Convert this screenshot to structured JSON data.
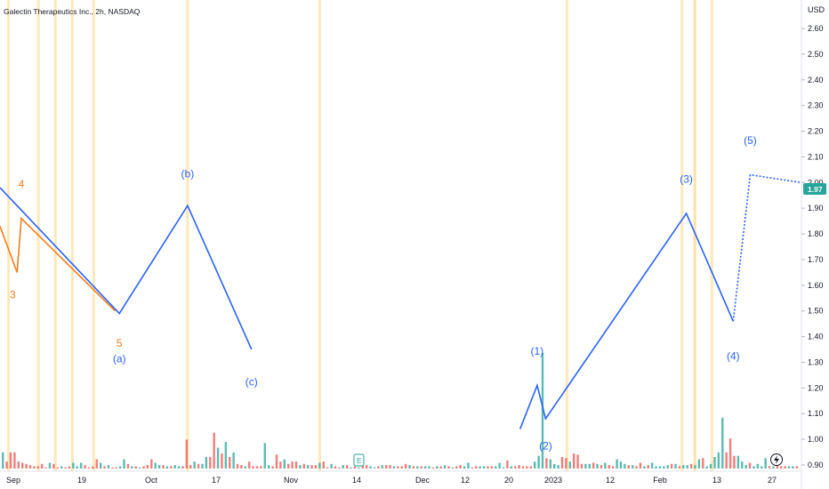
{
  "header": {
    "title": "Galectin Therapeutics Inc., 2h, NASDAQ",
    "currency": "USD"
  },
  "price_badge": {
    "value": "1.97",
    "color": "#26a69a"
  },
  "event_markers": {
    "earnings": "E",
    "flash_icon": "lightning-icon"
  },
  "colors": {
    "blue_wave": "#2962ff",
    "orange_wave": "#f57c1f",
    "volume_up": "#26a69a",
    "volume_down": "#ef5350",
    "session_band": "#ffe0a3"
  },
  "chart_data": {
    "type": "line",
    "title": "Galectin Therapeutics Inc., 2h, NASDAQ",
    "y_axis": {
      "label": "USD",
      "ticks": [
        "2.60",
        "2.50",
        "2.40",
        "2.30",
        "2.20",
        "2.10",
        "2.00",
        "1.90",
        "1.80",
        "1.70",
        "1.60",
        "1.50",
        "1.40",
        "1.30",
        "1.20",
        "1.10",
        "1.00",
        "0.90"
      ],
      "range": [
        0.87,
        2.68
      ]
    },
    "x_axis": {
      "ticks": [
        "Sep",
        "19",
        "Oct",
        "17",
        "Nov",
        "14",
        "Dec",
        "12",
        "20",
        "2023",
        "12",
        "Feb",
        "13",
        "27"
      ],
      "range": [
        "2022-08-29",
        "2023-03-05"
      ]
    },
    "series": [
      {
        "points": [
          {
            "x": "2022-08-29",
            "y": 1.98
          },
          {
            "x": "2022-09-26",
            "y": 1.49
          },
          {
            "x": "2022-10-12",
            "y": 1.91
          },
          {
            "x": "2022-10-27",
            "y": 1.35
          }
        ],
        "labels": [
          {
            "text": "(a)",
            "x": "2022-09-26",
            "y": 1.3
          },
          {
            "text": "(b)",
            "x": "2022-10-12",
            "y": 2.02
          },
          {
            "text": "(c)",
            "x": "2022-10-27",
            "y": 1.21
          }
        ]
      },
      {
        "points": [
          {
            "x": "2022-08-29",
            "y": 1.83
          },
          {
            "x": "2022-09-02",
            "y": 1.65
          },
          {
            "x": "2022-09-03",
            "y": 1.86
          },
          {
            "x": "2022-09-25",
            "y": 1.5
          }
        ],
        "labels": [
          {
            "text": "3",
            "x": "2022-09-01",
            "y": 1.55
          },
          {
            "text": "4",
            "x": "2022-09-03",
            "y": 1.98
          },
          {
            "text": "5",
            "x": "2022-09-26",
            "y": 1.36
          }
        ]
      },
      {
        "points": [
          {
            "x": "2022-12-29",
            "y": 1.04
          },
          {
            "x": "2023-01-02",
            "y": 1.21
          },
          {
            "x": "2023-01-04",
            "y": 1.08
          },
          {
            "x": "2023-02-06",
            "y": 1.88
          },
          {
            "x": "2023-02-17",
            "y": 1.46
          }
        ],
        "projected": [
          {
            "x": "2023-02-17",
            "y": 1.46
          },
          {
            "x": "2023-02-21",
            "y": 2.03
          },
          {
            "x": "2023-03-05",
            "y": 2.0
          }
        ],
        "labels": [
          {
            "text": "(1)",
            "x": "2023-01-02",
            "y": 1.33
          },
          {
            "text": "(2)",
            "x": "2023-01-04",
            "y": 0.96
          },
          {
            "text": "(3)",
            "x": "2023-02-06",
            "y": 2.0
          },
          {
            "text": "(4)",
            "x": "2023-02-17",
            "y": 1.31
          },
          {
            "text": "(5)",
            "x": "2023-02-21",
            "y": 2.15
          }
        ]
      }
    ],
    "last_price": 1.97,
    "grid": false,
    "volume": {
      "max": 100,
      "values": [
        14,
        6,
        14,
        14,
        6,
        5,
        4,
        3,
        2,
        2,
        4,
        1,
        5,
        4,
        1,
        2,
        1,
        2,
        5,
        2,
        5,
        3,
        1,
        2,
        8,
        5,
        2,
        3,
        1,
        1,
        2,
        8,
        4,
        2,
        2,
        1,
        2,
        3,
        8,
        5,
        3,
        3,
        2,
        2,
        3,
        2,
        2,
        25,
        3,
        6,
        4,
        4,
        10,
        10,
        31,
        18,
        13,
        23,
        10,
        14,
        4,
        3,
        2,
        6,
        2,
        2,
        2,
        22,
        3,
        2,
        12,
        6,
        8,
        4,
        6,
        6,
        3,
        4,
        3,
        3,
        3,
        5,
        6,
        1,
        4,
        2,
        1,
        3,
        3,
        1,
        2,
        1,
        3,
        3,
        2,
        1,
        2,
        3,
        3,
        3,
        2,
        2,
        2,
        4,
        3,
        2,
        2,
        2,
        2,
        2,
        1,
        2,
        2,
        3,
        2,
        1,
        2,
        3,
        2,
        5,
        1,
        2,
        2,
        2,
        2,
        2,
        2,
        5,
        1,
        7,
        2,
        2,
        3,
        2,
        2,
        2,
        6,
        11,
        100,
        9,
        8,
        4,
        3,
        10,
        9,
        6,
        13,
        12,
        4,
        4,
        4,
        5,
        4,
        3,
        5,
        3,
        2,
        8,
        6,
        4,
        3,
        3,
        2,
        5,
        2,
        3,
        5,
        2,
        2,
        2,
        3,
        4,
        4,
        2,
        3,
        3,
        4,
        3,
        8,
        9,
        2,
        4,
        10,
        14,
        44,
        14,
        26,
        11,
        11,
        6,
        3,
        5,
        2,
        4,
        2,
        9,
        2,
        2,
        3,
        2,
        2,
        2,
        2,
        2
      ],
      "up": [
        1,
        0,
        0,
        0,
        0,
        0,
        0,
        0,
        0,
        0,
        0,
        0,
        1,
        0,
        0,
        1,
        0,
        0,
        1,
        1,
        1,
        0,
        0,
        0,
        0,
        1,
        0,
        1,
        0,
        0,
        1,
        1,
        0,
        1,
        0,
        1,
        0,
        0,
        0,
        1,
        1,
        0,
        1,
        0,
        1,
        1,
        0,
        0,
        0,
        1,
        0,
        1,
        1,
        0,
        0,
        1,
        0,
        1,
        0,
        1,
        0,
        0,
        1,
        0,
        0,
        0,
        0,
        1,
        1,
        0,
        0,
        0,
        1,
        0,
        0,
        0,
        1,
        0,
        1,
        0,
        0,
        1,
        0,
        0,
        1,
        0,
        0,
        1,
        0,
        1,
        0,
        1,
        0,
        0,
        1,
        1,
        0,
        1,
        0,
        0,
        1,
        0,
        0,
        0,
        1,
        0,
        1,
        0,
        1,
        1,
        0,
        1,
        0,
        1,
        0,
        1,
        0,
        0,
        1,
        1,
        0,
        0,
        1,
        1,
        0,
        0,
        1,
        1,
        1,
        0,
        1,
        0,
        0,
        0,
        0,
        0,
        1,
        1,
        1,
        0,
        1,
        1,
        1,
        0,
        0,
        1,
        0,
        0,
        0,
        1,
        1,
        0,
        1,
        0,
        1,
        0,
        0,
        1,
        1,
        1,
        0,
        1,
        0,
        0,
        1,
        0,
        1,
        1,
        1,
        1,
        1,
        0,
        1,
        0,
        1,
        1,
        0,
        1,
        1,
        0,
        1,
        1,
        1,
        1,
        1,
        0,
        0,
        0,
        1,
        1,
        1,
        0,
        1,
        1,
        1,
        1,
        0,
        1,
        0,
        0,
        0,
        1,
        1,
        0
      ]
    },
    "session_bands_x": [
      "2022-08-31",
      "2022-09-07",
      "2022-09-11",
      "2022-09-15",
      "2022-09-20",
      "2022-10-12",
      "2022-11-12",
      "2023-01-09",
      "2023-02-05",
      "2023-02-08",
      "2023-02-08",
      "2023-02-12"
    ]
  }
}
